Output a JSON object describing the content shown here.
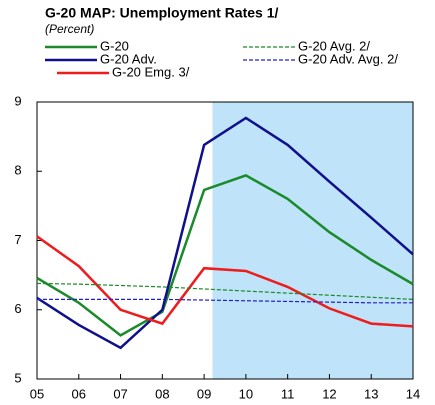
{
  "chart_data": {
    "type": "line",
    "title": "G-20 MAP: Unemployment Rates 1/",
    "subtitle": "(Percent)",
    "categories": [
      "05",
      "06",
      "07",
      "08",
      "09",
      "10",
      "11",
      "12",
      "13",
      "14"
    ],
    "series": [
      {
        "name": "G-20",
        "color": "#1a8a2a",
        "dashed": false,
        "values": [
          6.46,
          6.1,
          5.63,
          5.97,
          7.73,
          7.94,
          7.6,
          7.12,
          6.72,
          6.37
        ]
      },
      {
        "name": "G-20 Adv.",
        "color": "#10108a",
        "dashed": false,
        "values": [
          6.17,
          5.78,
          5.45,
          6.0,
          8.38,
          8.77,
          8.38,
          7.85,
          7.33,
          6.8
        ]
      },
      {
        "name": "G-20 Emg. 3/",
        "color": "#ee1c1c",
        "dashed": false,
        "values": [
          7.06,
          6.63,
          6.0,
          5.8,
          6.6,
          6.56,
          6.33,
          6.02,
          5.8,
          5.76
        ]
      },
      {
        "name": "G-20 Avg. 2/",
        "color": "#1a8a2a",
        "dashed": true,
        "values": [
          6.38,
          6.37,
          6.35,
          6.33,
          6.3,
          6.27,
          6.24,
          6.21,
          6.18,
          6.15
        ]
      },
      {
        "name": "G-20 Adv. Avg. 2/",
        "color": "#2020cc",
        "dashed": true,
        "values": [
          6.15,
          6.15,
          6.15,
          6.15,
          6.14,
          6.13,
          6.12,
          6.11,
          6.1,
          6.1
        ]
      }
    ],
    "ylim": [
      5,
      9
    ],
    "yticks": [
      5,
      6,
      7,
      8,
      9
    ],
    "grid": false
  }
}
